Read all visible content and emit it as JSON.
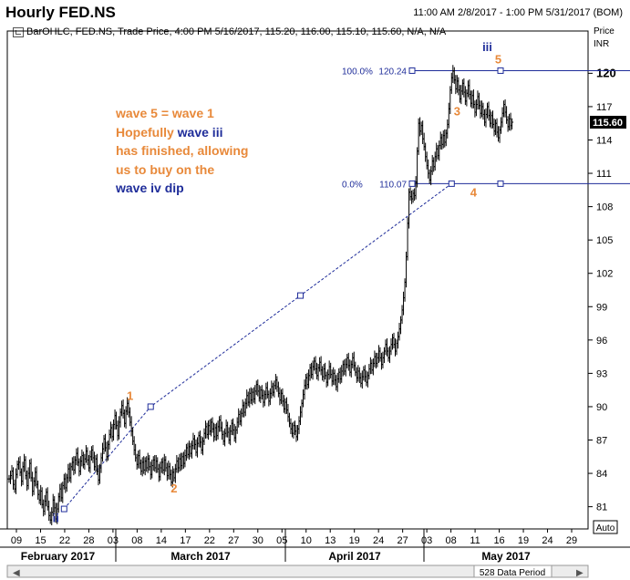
{
  "header": {
    "title": "Hourly FED.NS",
    "date_range": "11:00 AM 2/8/2017 - 1:00 PM 5/31/2017 (BOM)",
    "series_info": "BarOHLC, FED.NS, Trade Price, 4:00 PM 5/16/2017, 115.20, 116.00, 115.10, 115.60, N/A, N/A",
    "price_label": "Price",
    "currency": "INR"
  },
  "annotation": {
    "line1": "wave 5 = wave 1",
    "line2_a": "Hopefully ",
    "line2_b": "wave iii",
    "line3": "has finished, allowing",
    "line4": "us to buy on the",
    "line5": "wave iv dip"
  },
  "footer": {
    "auto_label": "Auto",
    "data_period": "528 Data Period"
  },
  "colors": {
    "price": "#000000",
    "orange": "#e8893a",
    "blue": "#1f2d9a",
    "fib_line": "#1f2d9a",
    "last_price_bg": "#000000"
  },
  "chart_data": {
    "type": "bar",
    "subtype": "ohlc",
    "ylim": [
      79,
      122
    ],
    "y_ticks": [
      "81",
      "84",
      "87",
      "90",
      "93",
      "96",
      "99",
      "102",
      "105",
      "108",
      "111",
      "114",
      "117",
      "120"
    ],
    "last_price": "115.60",
    "x_ticks": [
      "09",
      "15",
      "22",
      "28",
      "03",
      "08",
      "14",
      "17",
      "22",
      "27",
      "30",
      "05",
      "10",
      "13",
      "19",
      "24",
      "27",
      "03",
      "08",
      "11",
      "16",
      "19",
      "24",
      "29"
    ],
    "months": [
      "February 2017",
      "March 2017",
      "April 2017",
      "May 2017"
    ],
    "fib": [
      {
        "level": "100.0%",
        "price": "120.24",
        "value": 120.24
      },
      {
        "level": "0.0%",
        "price": "110.07",
        "value": 110.07
      }
    ],
    "wave_labels": [
      {
        "label": "ii",
        "color": "blue",
        "x_index": 34,
        "price": 79.6
      },
      {
        "label": "1",
        "color": "orange",
        "x_index": 88,
        "price": 90.6
      },
      {
        "label": "2",
        "color": "orange",
        "x_index": 120,
        "price": 82.3
      },
      {
        "label": "3",
        "color": "orange",
        "x_index": 326,
        "price": 116.2
      },
      {
        "label": "4",
        "color": "orange",
        "x_index": 338,
        "price": 108.9
      },
      {
        "label": "iii",
        "color": "blue",
        "x_index": 348,
        "price": 122.0
      },
      {
        "label": "5",
        "color": "orange",
        "x_index": 356,
        "price": 120.9
      }
    ],
    "projection": [
      {
        "x_index": 40,
        "price": 80.8
      },
      {
        "x_index": 103,
        "price": 90.0
      },
      {
        "x_index": 212,
        "price": 100.0
      },
      {
        "x_index": 322,
        "price": 110.07
      }
    ],
    "close": [
      83.5,
      83.8,
      84.2,
      83.0,
      82.6,
      83.9,
      84.8,
      85.0,
      84.1,
      83.3,
      84.6,
      85.2,
      83.8,
      82.9,
      84.0,
      84.9,
      83.6,
      82.4,
      83.3,
      84.1,
      83.0,
      82.1,
      81.6,
      82.4,
      81.2,
      80.6,
      81.5,
      82.3,
      81.0,
      80.2,
      79.8,
      80.5,
      81.6,
      80.9,
      79.9,
      80.8,
      81.9,
      82.6,
      81.8,
      82.9,
      83.5,
      82.7,
      83.6,
      84.4,
      83.6,
      84.6,
      85.0,
      84.3,
      85.2,
      85.8,
      85.0,
      84.2,
      85.1,
      85.6,
      84.8,
      85.3,
      86.0,
      85.2,
      84.5,
      85.5,
      86.1,
      85.4,
      84.6,
      85.3,
      84.2,
      83.4,
      84.5,
      85.4,
      86.2,
      87.1,
      86.3,
      85.5,
      86.6,
      87.5,
      88.1,
      87.3,
      88.4,
      89.2,
      88.3,
      87.4,
      88.6,
      89.5,
      90.1,
      89.4,
      88.5,
      89.6,
      90.3,
      89.5,
      88.6,
      87.8,
      86.9,
      86.1,
      85.4,
      84.8,
      85.6,
      84.9,
      84.2,
      85.0,
      84.3,
      85.1,
      84.5,
      85.3,
      84.6,
      83.9,
      84.7,
      85.2,
      84.5,
      85.1,
      84.4,
      83.7,
      84.5,
      85.0,
      84.3,
      85.2,
      84.5,
      83.8,
      84.6,
      83.9,
      83.2,
      84.1,
      83.6,
      84.4,
      85.1,
      84.5,
      85.3,
      84.7,
      85.5,
      84.9,
      85.6,
      86.3,
      85.7,
      86.4,
      85.8,
      86.5,
      87.1,
      86.6,
      85.9,
      86.7,
      87.4,
      86.8,
      86.1,
      86.9,
      87.6,
      88.2,
      87.5,
      88.3,
      87.8,
      88.6,
      88.0,
      87.3,
      88.1,
      87.4,
      88.2,
      88.8,
      88.1,
      87.5,
      86.9,
      87.6,
      88.3,
      87.7,
      87.0,
      87.8,
      88.5,
      87.9,
      87.2,
      87.9,
      88.6,
      89.3,
      88.7,
      89.4,
      90.1,
      89.5,
      90.3,
      91.0,
      90.4,
      91.2,
      90.6,
      91.3,
      90.7,
      91.4,
      92.0,
      91.4,
      90.8,
      91.5,
      91.0,
      90.4,
      91.1,
      91.7,
      91.1,
      90.5,
      91.2,
      91.8,
      91.3,
      91.9,
      92.4,
      91.8,
      91.2,
      90.6,
      91.2,
      90.5,
      89.8,
      90.4,
      89.7,
      89.1,
      88.5,
      88.0,
      87.6,
      88.3,
      87.8,
      87.3,
      88.0,
      88.7,
      89.5,
      90.3,
      91.1,
      91.9,
      92.6,
      92.0,
      92.8,
      93.5,
      92.9,
      93.6,
      94.1,
      93.4,
      92.8,
      93.5,
      94.0,
      93.3,
      92.7,
      93.4,
      92.8,
      92.2,
      92.9,
      93.6,
      92.9,
      92.3,
      93.0,
      92.4,
      91.8,
      92.5,
      93.1,
      92.5,
      93.2,
      93.8,
      93.2,
      93.8,
      94.4,
      93.7,
      93.1,
      93.8,
      94.4,
      93.7,
      93.1,
      92.6,
      93.2,
      92.6,
      92.1,
      92.7,
      93.3,
      92.7,
      92.2,
      92.8,
      93.4,
      93.9,
      93.3,
      93.9,
      94.5,
      93.9,
      94.4,
      95.0,
      94.4,
      93.8,
      94.4,
      95.0,
      95.6,
      95.0,
      94.4,
      95.0,
      95.6,
      96.2,
      95.6,
      95.0,
      95.7,
      96.3,
      97.0,
      97.8,
      98.7,
      99.8,
      101.2,
      103.5,
      106.5,
      109.3,
      108.9,
      108.7,
      109.2,
      109.0,
      110.2,
      113.0,
      115.5,
      114.8,
      115.3,
      114.1,
      113.4,
      112.5,
      111.7,
      111.0,
      110.4,
      111.2,
      112.1,
      111.6,
      112.5,
      113.2,
      112.6,
      113.5,
      114.2,
      113.6,
      114.4,
      113.8,
      114.6,
      115.4,
      116.8,
      118.5,
      119.6,
      120.2,
      119.4,
      118.6,
      119.3,
      118.5,
      117.7,
      118.4,
      119.1,
      118.3,
      117.5,
      118.2,
      118.9,
      118.1,
      117.3,
      118.0,
      117.2,
      116.5,
      117.2,
      117.9,
      117.1,
      116.4,
      117.0,
      116.3,
      115.6,
      116.3,
      117.0,
      116.2,
      115.5,
      116.2,
      115.4,
      114.8,
      115.5,
      114.7,
      114.2,
      114.9,
      115.6,
      116.4,
      117.2,
      116.5,
      115.8,
      115.2,
      115.9,
      115.3,
      115.6
    ]
  }
}
